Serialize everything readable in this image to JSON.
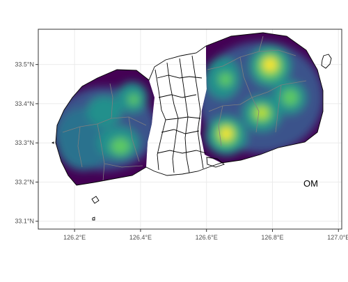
{
  "map": {
    "label": "OM",
    "axes": {
      "x_ticks": [
        {
          "value": 126.2,
          "label": "126.2°E"
        },
        {
          "value": 126.4,
          "label": "126.4°E"
        },
        {
          "value": 126.6,
          "label": "126.6°E"
        },
        {
          "value": 126.8,
          "label": "126.8°E"
        },
        {
          "value": 127.0,
          "label": "127.0°E"
        }
      ],
      "y_ticks": [
        {
          "value": 33.1,
          "label": "33.1°N"
        },
        {
          "value": 33.2,
          "label": "33.2°N"
        },
        {
          "value": 33.3,
          "label": "33.3°N"
        },
        {
          "value": 33.4,
          "label": "33.4°N"
        },
        {
          "value": 33.5,
          "label": "33.5°N"
        }
      ],
      "xlim": [
        126.09,
        127.01
      ],
      "ylim": [
        33.08,
        33.59
      ]
    },
    "grid": true,
    "colors": {
      "palette": [
        "#440154",
        "#3b528b",
        "#21908c",
        "#5dc963",
        "#fde725"
      ],
      "grid": "#ebebeb",
      "outline": "#000000",
      "inner_boundaries": "#7f7f7f"
    },
    "hotspots": [
      {
        "lon": 126.8,
        "lat": 33.5,
        "intensity": 1.0
      },
      {
        "lon": 126.67,
        "lat": 33.33,
        "intensity": 0.9
      },
      {
        "lon": 126.78,
        "lat": 33.38,
        "intensity": 0.85
      },
      {
        "lon": 126.86,
        "lat": 33.41,
        "intensity": 0.75
      },
      {
        "lon": 126.66,
        "lat": 33.46,
        "intensity": 0.55
      },
      {
        "lon": 126.34,
        "lat": 33.3,
        "intensity": 0.6
      },
      {
        "lon": 126.35,
        "lat": 33.42,
        "intensity": 0.45
      },
      {
        "lon": 126.27,
        "lat": 33.36,
        "intensity": 0.4
      }
    ]
  }
}
